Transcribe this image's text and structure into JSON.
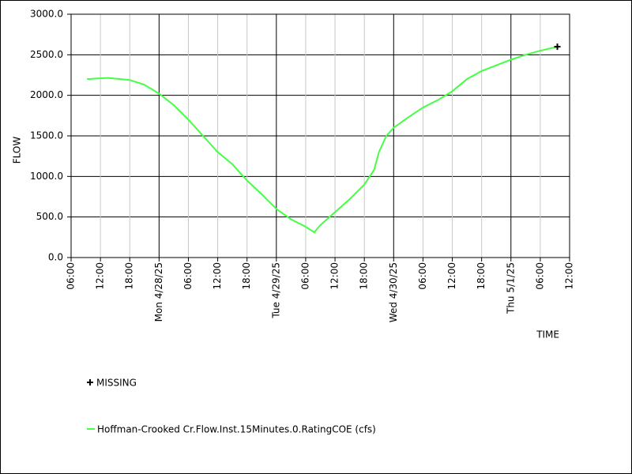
{
  "chart_data": {
    "type": "line",
    "x_label": "TIME",
    "y_label": "FLOW",
    "xlim": [
      "2025-04-27T06:00",
      "2025-05-01T12:00"
    ],
    "xticks": [
      {
        "value": "2025-04-27T06:00",
        "label": "06:00"
      },
      {
        "value": "2025-04-27T12:00",
        "label": "12:00"
      },
      {
        "value": "2025-04-27T18:00",
        "label": "18:00"
      },
      {
        "value": "2025-04-28T00:00",
        "label": "Mon 4/28/25"
      },
      {
        "value": "2025-04-28T06:00",
        "label": "06:00"
      },
      {
        "value": "2025-04-28T12:00",
        "label": "12:00"
      },
      {
        "value": "2025-04-28T18:00",
        "label": "18:00"
      },
      {
        "value": "2025-04-29T00:00",
        "label": "Tue 4/29/25"
      },
      {
        "value": "2025-04-29T06:00",
        "label": "06:00"
      },
      {
        "value": "2025-04-29T12:00",
        "label": "12:00"
      },
      {
        "value": "2025-04-29T18:00",
        "label": "18:00"
      },
      {
        "value": "2025-04-30T00:00",
        "label": "Wed 4/30/25"
      },
      {
        "value": "2025-04-30T06:00",
        "label": "06:00"
      },
      {
        "value": "2025-04-30T12:00",
        "label": "12:00"
      },
      {
        "value": "2025-04-30T18:00",
        "label": "18:00"
      },
      {
        "value": "2025-05-01T00:00",
        "label": "Thu 5/1/25"
      },
      {
        "value": "2025-05-01T06:00",
        "label": "06:00"
      },
      {
        "value": "2025-05-01T12:00",
        "label": "12:00"
      }
    ],
    "ylim": [
      0,
      3000
    ],
    "yticks": [
      {
        "value": 0,
        "label": "0.0"
      },
      {
        "value": 500,
        "label": "500.0"
      },
      {
        "value": 1000,
        "label": "1000.0"
      },
      {
        "value": 1500,
        "label": "1500.0"
      },
      {
        "value": 2000,
        "label": "2000.0"
      },
      {
        "value": 2500,
        "label": "2500.0"
      },
      {
        "value": 3000,
        "label": "3000.0"
      }
    ],
    "grid": true,
    "x": [
      "2025-04-27T09:15",
      "2025-04-27T12:00",
      "2025-04-27T13:30",
      "2025-04-27T18:00",
      "2025-04-27T21:00",
      "2025-04-28T00:00",
      "2025-04-28T03:00",
      "2025-04-28T06:00",
      "2025-04-28T09:00",
      "2025-04-28T12:00",
      "2025-04-28T15:00",
      "2025-04-28T18:00",
      "2025-04-28T21:00",
      "2025-04-29T00:00",
      "2025-04-29T03:00",
      "2025-04-29T06:00",
      "2025-04-29T07:45",
      "2025-04-29T09:00",
      "2025-04-29T12:00",
      "2025-04-29T15:00",
      "2025-04-29T18:00",
      "2025-04-29T20:00",
      "2025-04-29T21:00",
      "2025-04-29T22:30",
      "2025-04-30T00:00",
      "2025-04-30T03:00",
      "2025-04-30T06:00",
      "2025-04-30T09:00",
      "2025-04-30T12:00",
      "2025-04-30T15:00",
      "2025-04-30T18:00",
      "2025-04-30T21:00",
      "2025-05-01T00:00",
      "2025-05-01T03:00",
      "2025-05-01T06:00",
      "2025-05-01T09:30"
    ],
    "series": [
      {
        "name": "Hoffman-Crooked Cr.Flow.Inst.15Minutes.0.RatingCOE (cfs)",
        "color": "#44ff44",
        "values": [
          2200,
          2210,
          2215,
          2190,
          2130,
          2020,
          1880,
          1700,
          1500,
          1300,
          1150,
          950,
          780,
          600,
          470,
          380,
          310,
          400,
          560,
          720,
          900,
          1080,
          1300,
          1500,
          1600,
          1730,
          1850,
          1940,
          2050,
          2200,
          2300,
          2370,
          2440,
          2500,
          2550,
          2600
        ]
      }
    ],
    "missing": {
      "name": "MISSING",
      "color": "#000000",
      "x": "2025-05-01T09:30",
      "y": 2600
    }
  }
}
